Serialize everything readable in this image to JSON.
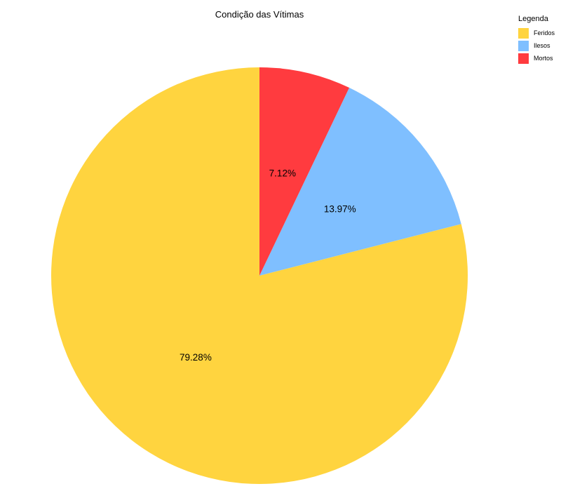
{
  "chart_data": {
    "type": "pie",
    "title": "Condição das Vítimas",
    "legend_title": "Legenda",
    "legend_position": "top-right",
    "start_angle": "12 o'clock",
    "direction": "counterclockwise",
    "slices": [
      {
        "name": "Feridos",
        "value": 79.28,
        "label": "79.28%",
        "color": "#FFD43F"
      },
      {
        "name": "Ilesos",
        "value": 13.97,
        "label": "13.97%",
        "color": "#7FBFFF"
      },
      {
        "name": "Mortos",
        "value": 7.12,
        "label": "7.12%",
        "color": "#FF3B3F"
      }
    ]
  }
}
